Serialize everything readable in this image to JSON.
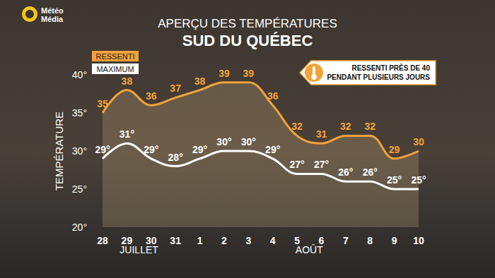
{
  "chart_data": {
    "type": "line",
    "title": "APERÇU DES TEMPÉRATURES",
    "subtitle": "SUD DU QUÉBEC",
    "logo": [
      "Météo",
      "Média"
    ],
    "y_label": "TEMPÉRATURE",
    "annotation": [
      "RESSENTI PRÈS DE 40",
      "PENDANT PLUSIEURS JOURS"
    ],
    "categories": [
      "28",
      "29",
      "30",
      "31",
      "1",
      "2",
      "3",
      "4",
      "5",
      "6",
      "7",
      "8",
      "9",
      "10"
    ],
    "month_labels": [
      {
        "text": "JUILLET",
        "categories": [
          "29",
          "30"
        ]
      },
      {
        "text": "AOÛT",
        "categories": [
          "5",
          "6"
        ]
      }
    ],
    "series": [
      {
        "name": "RESSENTI",
        "color": "#f2a33a",
        "values": [
          35,
          38,
          36,
          37,
          38,
          39,
          39,
          36,
          32,
          31,
          32,
          32,
          29,
          30
        ]
      },
      {
        "name": "MAXIMUM",
        "color": "#ffffff",
        "values": [
          29,
          31,
          29,
          28,
          29,
          30,
          30,
          29,
          27,
          27,
          26,
          26,
          25,
          25
        ],
        "value_labels": [
          "29°",
          "31°",
          "29°",
          "28°",
          "29°",
          "30°",
          "30°",
          "29°",
          "27°",
          "27°",
          "26°",
          "26°",
          "25°",
          "25°"
        ]
      }
    ],
    "ylim": [
      20,
      40
    ],
    "yticks": [
      {
        "value": 20,
        "label": "20°"
      },
      {
        "value": 25,
        "label": "25°"
      },
      {
        "value": 30,
        "label": "30°"
      },
      {
        "value": 35,
        "label": "35°"
      },
      {
        "value": 40,
        "label": "40°"
      }
    ],
    "data_labels": true,
    "grid": false,
    "legend": "top-left",
    "line_style": "solid"
  }
}
